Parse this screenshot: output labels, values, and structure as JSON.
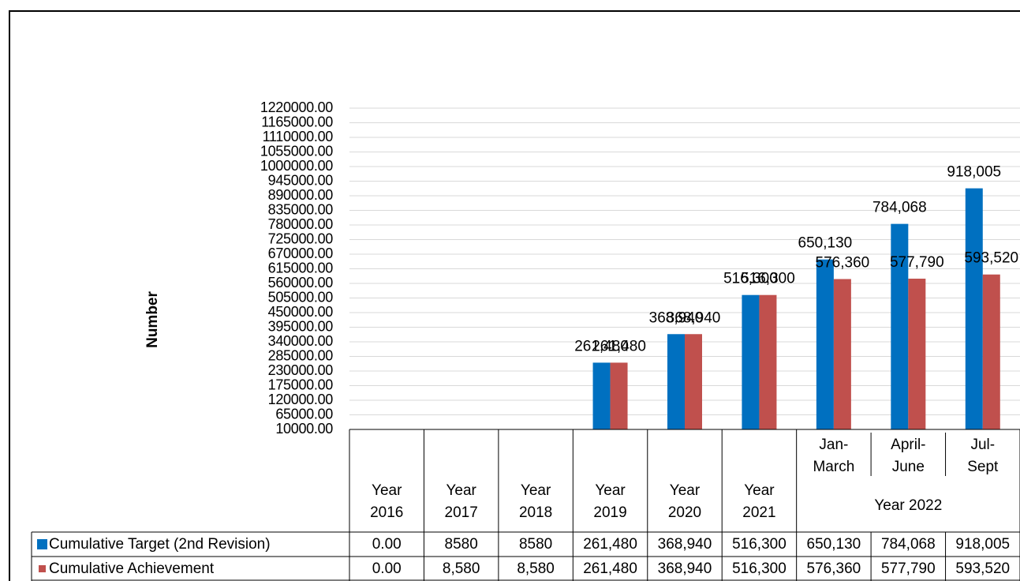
{
  "chart_data": {
    "type": "bar",
    "y_label": "Number",
    "categories": [
      "Year 2016",
      "Year 2017",
      "Year 2018",
      "Year 2019",
      "Year 2020",
      "Year 2021",
      "Jan-March",
      "April-June",
      "Jul-Sept"
    ],
    "category_groups": [
      {
        "name": "Year 2022",
        "first": 6,
        "count": 3
      }
    ],
    "series": [
      {
        "name": "Cumulative Target (2nd Revision)",
        "color": "#0070c0",
        "values": [
          0,
          8580,
          8580,
          261480,
          368940,
          516300,
          650130,
          784068,
          918005
        ],
        "value_labels": [
          null,
          null,
          null,
          "261,480",
          "368,940",
          "516,300",
          "650,130",
          "784,068",
          "918,005"
        ],
        "table_values": [
          "0.00",
          "8580",
          "8580",
          "261,480",
          "368,940",
          "516,300",
          "650,130",
          "784,068",
          "918,005"
        ]
      },
      {
        "name": "Cumulative Achievement",
        "color": "#c0504d",
        "values": [
          0,
          8580,
          8580,
          261480,
          368940,
          516300,
          576360,
          577790,
          593520
        ],
        "value_labels": [
          null,
          null,
          null,
          "261,480",
          "368,940",
          "516,300",
          "576,360",
          "577,790",
          "593,520"
        ],
        "table_values": [
          "0.00",
          "8,580",
          "8,580",
          "261,480",
          "368,940",
          "516,300",
          "576,360",
          "577,790",
          "593,520"
        ]
      }
    ],
    "ylim": [
      10000,
      1220000
    ],
    "yticks": [
      {
        "value": 10000,
        "label": "10000.00"
      },
      {
        "value": 65000,
        "label": "65000.00"
      },
      {
        "value": 120000,
        "label": "120000.00"
      },
      {
        "value": 175000,
        "label": "175000.00"
      },
      {
        "value": 230000,
        "label": "230000.00"
      },
      {
        "value": 285000,
        "label": "285000.00"
      },
      {
        "value": 340000,
        "label": "340000.00"
      },
      {
        "value": 395000,
        "label": "395000.00"
      },
      {
        "value": 450000,
        "label": "450000.00"
      },
      {
        "value": 505000,
        "label": "505000.00"
      },
      {
        "value": 560000,
        "label": "560000.00"
      },
      {
        "value": 615000,
        "label": "615000.00"
      },
      {
        "value": 670000,
        "label": "670000.00"
      },
      {
        "value": 725000,
        "label": "725000.00"
      },
      {
        "value": 780000,
        "label": "780000.00"
      },
      {
        "value": 835000,
        "label": "835000.00"
      },
      {
        "value": 890000,
        "label": "890000.00"
      },
      {
        "value": 945000,
        "label": "945000.00"
      },
      {
        "value": 1000000,
        "label": "1000000.00"
      },
      {
        "value": 1055000,
        "label": "1055000.00"
      },
      {
        "value": 1110000,
        "label": "1110000.00"
      },
      {
        "value": 1165000,
        "label": "1165000.00"
      },
      {
        "value": 1220000,
        "label": "1220000.00"
      }
    ],
    "grid": true,
    "data_table": true
  }
}
